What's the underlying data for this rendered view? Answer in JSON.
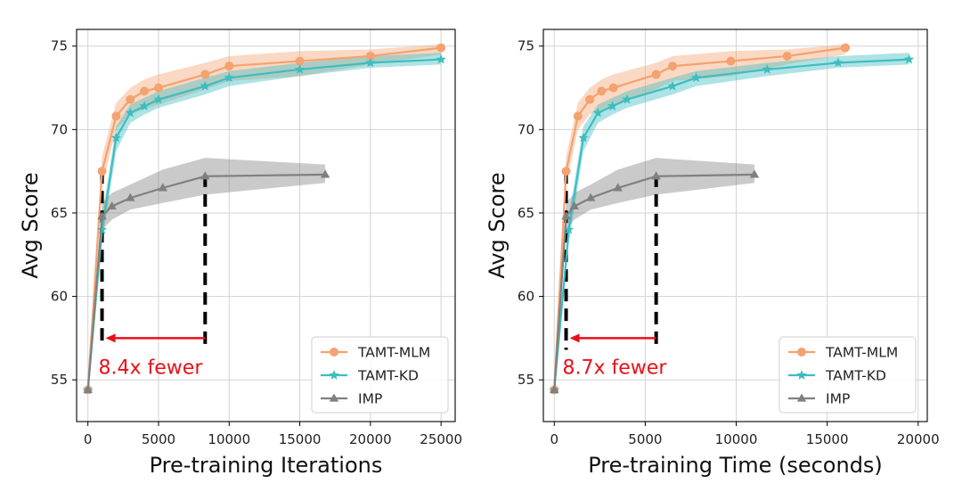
{
  "chart_data": [
    {
      "type": "line",
      "name": "iterations",
      "xlabel": "Pre-training Iterations",
      "ylabel": "Avg Score",
      "xlim": [
        -800,
        26000
      ],
      "ylim": [
        52.5,
        76
      ],
      "xticks": [
        0,
        5000,
        10000,
        15000,
        20000,
        25000
      ],
      "yticks": [
        55,
        60,
        65,
        70,
        75
      ],
      "grid": true,
      "legend_position": "lower-right",
      "series": [
        {
          "name": "TAMT-MLM",
          "color": "#f4a270",
          "marker": "circle",
          "x": [
            0,
            1000,
            2000,
            3000,
            4000,
            5000,
            8300,
            10000,
            15000,
            20000,
            25000
          ],
          "y": [
            54.4,
            67.5,
            70.8,
            71.8,
            72.3,
            72.5,
            73.3,
            73.8,
            74.1,
            74.4,
            74.9
          ],
          "lower": [
            54.4,
            66.6,
            70.0,
            70.9,
            71.2,
            71.5,
            72.4,
            72.9,
            73.2,
            73.9,
            74.5
          ],
          "upper": [
            54.4,
            68.4,
            71.6,
            72.5,
            73.0,
            73.3,
            74.0,
            74.4,
            74.7,
            74.8,
            75.1
          ]
        },
        {
          "name": "TAMT-KD",
          "color": "#3dbdc0",
          "marker": "star",
          "x": [
            0,
            1000,
            2000,
            3000,
            4000,
            5000,
            8300,
            10000,
            15000,
            20000,
            25000
          ],
          "y": [
            54.4,
            64.0,
            69.5,
            71.0,
            71.4,
            71.8,
            72.6,
            73.1,
            73.6,
            74.0,
            74.2
          ],
          "lower": [
            54.4,
            63.2,
            68.7,
            70.4,
            70.9,
            71.3,
            72.1,
            72.6,
            73.2,
            73.7,
            73.9
          ],
          "upper": [
            54.4,
            64.8,
            70.2,
            71.5,
            71.9,
            72.3,
            73.1,
            73.5,
            74.0,
            74.4,
            74.6
          ]
        },
        {
          "name": "IMP",
          "color": "#808080",
          "marker": "triangle",
          "x": [
            0,
            1000,
            1700,
            3000,
            5300,
            8300,
            16800
          ],
          "y": [
            54.4,
            64.8,
            65.4,
            65.9,
            66.5,
            67.2,
            67.3
          ],
          "lower": [
            54.4,
            64.0,
            64.6,
            65.2,
            65.6,
            66.1,
            66.8
          ],
          "upper": [
            54.4,
            65.6,
            66.2,
            66.7,
            67.6,
            68.3,
            67.9
          ]
        }
      ],
      "annotation": {
        "text": "8.4x fewer",
        "color": "#e8101a",
        "from_x": 8300,
        "to_x": 1000,
        "arrow_y": 57.5,
        "dashed_lines": [
          {
            "x": 1000,
            "y_from": 57.0,
            "y_to": 67.5
          },
          {
            "x": 8300,
            "y_from": 56.8,
            "y_to": 67.3
          }
        ]
      }
    },
    {
      "type": "line",
      "name": "time",
      "xlabel": "Pre-training Time (seconds)",
      "ylabel": "Avg Score",
      "xlim": [
        -600,
        20500
      ],
      "ylim": [
        52.5,
        76
      ],
      "xticks": [
        0,
        5000,
        10000,
        15000,
        20000
      ],
      "yticks": [
        55,
        60,
        65,
        70,
        75
      ],
      "grid": true,
      "legend_position": "lower-right",
      "series": [
        {
          "name": "TAMT-MLM",
          "color": "#f4a270",
          "marker": "circle",
          "x": [
            0,
            650,
            1300,
            1950,
            2600,
            3250,
            5600,
            6500,
            9700,
            12800,
            16000
          ],
          "y": [
            54.4,
            67.5,
            70.8,
            71.8,
            72.3,
            72.5,
            73.3,
            73.8,
            74.1,
            74.4,
            74.9
          ],
          "lower": [
            54.4,
            66.6,
            70.0,
            70.9,
            71.2,
            71.5,
            72.4,
            72.9,
            73.2,
            73.9,
            74.5
          ],
          "upper": [
            54.4,
            68.4,
            71.6,
            72.5,
            73.0,
            73.3,
            74.0,
            74.4,
            74.7,
            74.8,
            75.1
          ]
        },
        {
          "name": "TAMT-KD",
          "color": "#3dbdc0",
          "marker": "star",
          "x": [
            0,
            800,
            1600,
            2400,
            3200,
            4000,
            6500,
            7800,
            11700,
            15600,
            19500
          ],
          "y": [
            54.4,
            64.0,
            69.5,
            71.0,
            71.4,
            71.8,
            72.6,
            73.1,
            73.6,
            74.0,
            74.2
          ],
          "lower": [
            54.4,
            63.2,
            68.7,
            70.4,
            70.9,
            71.3,
            72.1,
            72.6,
            73.2,
            73.7,
            73.9
          ],
          "upper": [
            54.4,
            64.8,
            70.2,
            71.5,
            71.9,
            72.3,
            73.1,
            73.5,
            74.0,
            74.4,
            74.6
          ]
        },
        {
          "name": "IMP",
          "color": "#808080",
          "marker": "triangle",
          "x": [
            0,
            650,
            1100,
            2000,
            3500,
            5600,
            11000
          ],
          "y": [
            54.4,
            64.8,
            65.4,
            65.9,
            66.5,
            67.2,
            67.3
          ],
          "lower": [
            54.4,
            64.0,
            64.6,
            65.2,
            65.6,
            66.1,
            66.8
          ],
          "upper": [
            54.4,
            65.6,
            66.2,
            66.7,
            67.6,
            68.3,
            67.9
          ]
        }
      ],
      "annotation": {
        "text": "8.7x fewer",
        "color": "#e8101a",
        "from_x": 5600,
        "to_x": 650,
        "arrow_y": 57.5,
        "dashed_lines": [
          {
            "x": 650,
            "y_from": 56.8,
            "y_to": 67.5
          },
          {
            "x": 5600,
            "y_from": 56.8,
            "y_to": 67.3
          }
        ]
      }
    }
  ]
}
